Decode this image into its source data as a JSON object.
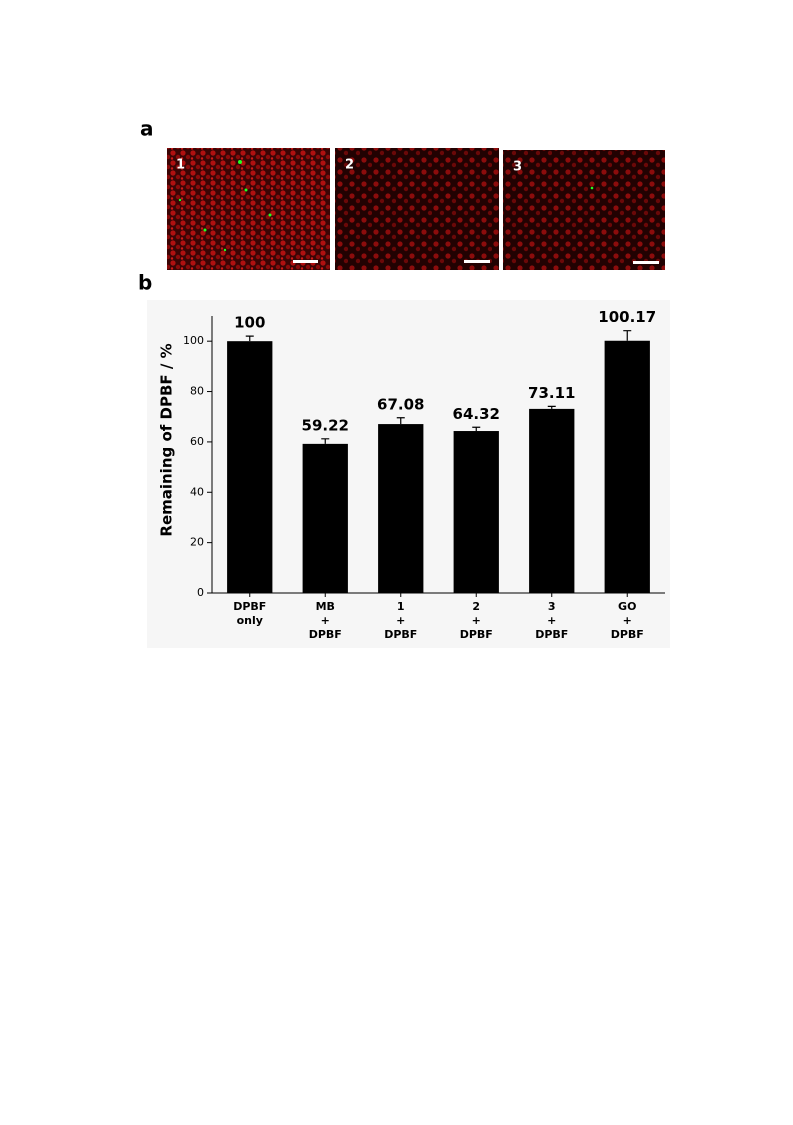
{
  "panel_labels": [
    "a",
    "b"
  ],
  "images": [
    "1",
    "2",
    "3"
  ],
  "chart_data": {
    "type": "bar",
    "y_label": "Remaining of DPBF / %",
    "categories": [
      [
        "DPBF",
        "only"
      ],
      [
        "MB",
        "+",
        "DPBF"
      ],
      [
        "1",
        "+",
        "DPBF"
      ],
      [
        "2",
        "+",
        "DPBF"
      ],
      [
        "3",
        "+",
        "DPBF"
      ],
      [
        "GO",
        "+",
        "DPBF"
      ]
    ],
    "values": [
      100,
      59.22,
      67.08,
      64.32,
      73.11,
      100.17
    ],
    "errors": [
      2,
      2,
      2.5,
      1.5,
      1,
      4
    ],
    "color": "#000000",
    "ylim": [
      0,
      110
    ],
    "yticks": [
      0,
      20,
      40,
      60,
      80,
      100
    ]
  }
}
